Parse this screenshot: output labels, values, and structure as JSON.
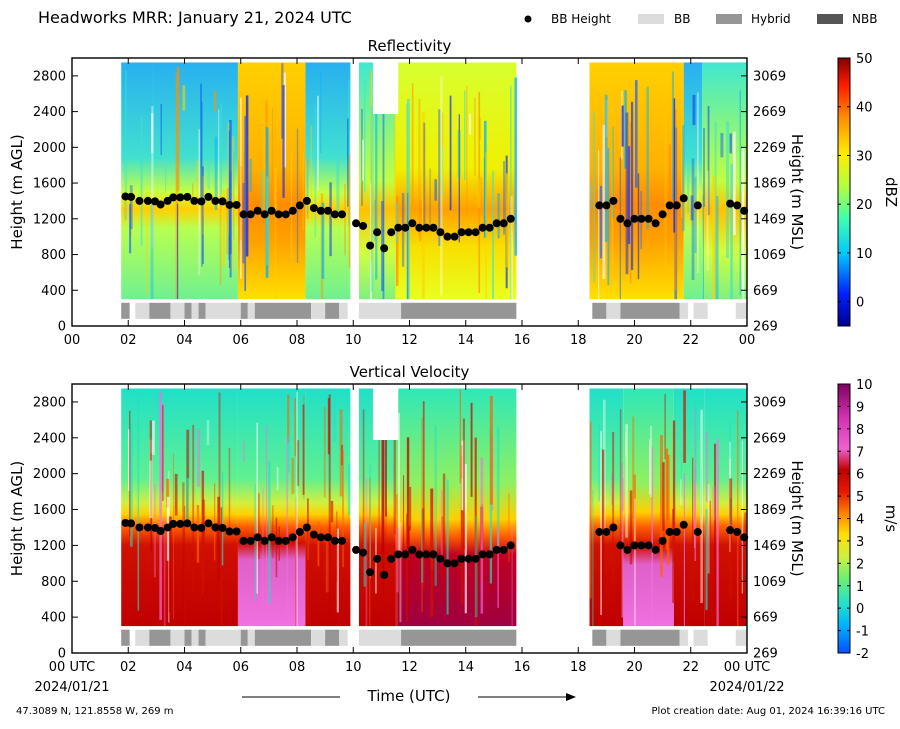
{
  "header": {
    "title": "Headworks MRR:  January 21, 2024 UTC",
    "legend": [
      {
        "label": "BB Height",
        "kind": "dot",
        "color": "#000000"
      },
      {
        "label": "BB",
        "kind": "rect",
        "color": "#dcdcdc"
      },
      {
        "label": "Hybrid",
        "kind": "rect",
        "color": "#969696"
      },
      {
        "label": "NBB",
        "kind": "rect",
        "color": "#555555"
      }
    ]
  },
  "chart_data": [
    {
      "type": "heatmap",
      "title": "Reflectivity",
      "ylabel": "Height (m AGL)",
      "ylabel_right": "Height (m MSL)",
      "yticks": [
        0,
        400,
        800,
        1200,
        1600,
        2000,
        2400,
        2800
      ],
      "yticks_right": [
        269,
        669,
        1069,
        1469,
        1869,
        2269,
        2669,
        3069
      ],
      "ylim": [
        0,
        3000
      ],
      "xlim": [
        0,
        24
      ],
      "xticks": [
        "00",
        "02",
        "04",
        "06",
        "08",
        "10",
        "12",
        "14",
        "16",
        "18",
        "20",
        "22",
        "00"
      ],
      "colorbar": {
        "label": "dBZ",
        "ticks": [
          0,
          10,
          20,
          30,
          40,
          50
        ],
        "range": [
          -5,
          50
        ]
      }
    },
    {
      "type": "heatmap",
      "title": "Vertical Velocity",
      "ylabel": "Height (m AGL)",
      "ylabel_right": "Height (m MSL)",
      "yticks": [
        0,
        400,
        800,
        1200,
        1600,
        2000,
        2400,
        2800
      ],
      "yticks_right": [
        269,
        669,
        1069,
        1469,
        1869,
        2269,
        2669,
        3069
      ],
      "ylim": [
        0,
        3000
      ],
      "xlim": [
        0,
        24
      ],
      "xticks": [
        "00 UTC",
        "02",
        "04",
        "06",
        "08",
        "10",
        "12",
        "14",
        "16",
        "18",
        "20",
        "22",
        "00 UTC"
      ],
      "xticks_sub": {
        "first": "2024/01/21",
        "last": "2024/01/22"
      },
      "xlabel": "Time (UTC)",
      "colorbar": {
        "label": "m/s",
        "ticks": [
          -2,
          -1,
          0,
          1,
          2,
          3,
          4,
          5,
          6,
          7,
          8,
          9,
          10
        ],
        "range": [
          -2,
          10
        ]
      }
    }
  ],
  "bb_height": [
    [
      1.9,
      1450
    ],
    [
      2.1,
      1445
    ],
    [
      2.4,
      1400
    ],
    [
      2.7,
      1400
    ],
    [
      2.95,
      1395
    ],
    [
      3.15,
      1360
    ],
    [
      3.4,
      1400
    ],
    [
      3.6,
      1440
    ],
    [
      3.85,
      1440
    ],
    [
      4.1,
      1445
    ],
    [
      4.35,
      1400
    ],
    [
      4.6,
      1395
    ],
    [
      4.85,
      1445
    ],
    [
      5.1,
      1400
    ],
    [
      5.35,
      1395
    ],
    [
      5.6,
      1355
    ],
    [
      5.85,
      1355
    ],
    [
      6.1,
      1250
    ],
    [
      6.35,
      1250
    ],
    [
      6.6,
      1290
    ],
    [
      6.85,
      1250
    ],
    [
      7.1,
      1290
    ],
    [
      7.35,
      1250
    ],
    [
      7.6,
      1250
    ],
    [
      7.85,
      1290
    ],
    [
      8.1,
      1350
    ],
    [
      8.35,
      1400
    ],
    [
      8.6,
      1320
    ],
    [
      8.85,
      1290
    ],
    [
      9.1,
      1290
    ],
    [
      9.35,
      1250
    ],
    [
      9.6,
      1250
    ],
    [
      10.1,
      1150
    ],
    [
      10.35,
      1120
    ],
    [
      10.6,
      900
    ],
    [
      10.85,
      1050
    ],
    [
      11.1,
      870
    ],
    [
      11.35,
      1050
    ],
    [
      11.6,
      1100
    ],
    [
      11.85,
      1100
    ],
    [
      12.1,
      1150
    ],
    [
      12.35,
      1100
    ],
    [
      12.6,
      1100
    ],
    [
      12.85,
      1100
    ],
    [
      13.1,
      1050
    ],
    [
      13.35,
      1000
    ],
    [
      13.6,
      1000
    ],
    [
      13.85,
      1050
    ],
    [
      14.1,
      1050
    ],
    [
      14.35,
      1050
    ],
    [
      14.6,
      1100
    ],
    [
      14.85,
      1100
    ],
    [
      15.1,
      1150
    ],
    [
      15.35,
      1150
    ],
    [
      15.6,
      1200
    ],
    [
      18.75,
      1350
    ],
    [
      19.0,
      1350
    ],
    [
      19.25,
      1400
    ],
    [
      19.5,
      1200
    ],
    [
      19.75,
      1150
    ],
    [
      20.0,
      1200
    ],
    [
      20.25,
      1200
    ],
    [
      20.5,
      1200
    ],
    [
      20.75,
      1150
    ],
    [
      21.0,
      1250
    ],
    [
      21.25,
      1350
    ],
    [
      21.5,
      1350
    ],
    [
      21.75,
      1430
    ],
    [
      22.25,
      1350
    ],
    [
      23.4,
      1370
    ],
    [
      23.65,
      1350
    ],
    [
      23.9,
      1290
    ]
  ],
  "bb_type": [
    [
      1.75,
      2.05,
      "Hybrid"
    ],
    [
      2.25,
      2.75,
      "BB"
    ],
    [
      2.75,
      3.5,
      "Hybrid"
    ],
    [
      3.5,
      4.0,
      "BB"
    ],
    [
      4.0,
      4.25,
      "Hybrid"
    ],
    [
      4.25,
      4.5,
      "BB"
    ],
    [
      4.5,
      4.75,
      "Hybrid"
    ],
    [
      4.75,
      6.0,
      "BB"
    ],
    [
      6.0,
      6.25,
      "Hybrid"
    ],
    [
      6.25,
      6.5,
      "BB"
    ],
    [
      6.5,
      8.5,
      "Hybrid"
    ],
    [
      8.5,
      9.0,
      "BB"
    ],
    [
      9.0,
      9.5,
      "Hybrid"
    ],
    [
      9.5,
      9.8,
      "BB"
    ],
    [
      10.2,
      11.7,
      "BB"
    ],
    [
      11.7,
      15.8,
      "Hybrid"
    ],
    [
      18.5,
      19.0,
      "Hybrid"
    ],
    [
      19.0,
      19.5,
      "BB"
    ],
    [
      19.5,
      21.6,
      "Hybrid"
    ],
    [
      21.6,
      21.9,
      "BB"
    ],
    [
      22.1,
      22.6,
      "BB"
    ],
    [
      23.6,
      24.0,
      "BB"
    ]
  ],
  "footer": {
    "location": "47.3089 N, 121.8558 W, 269 m",
    "creation": "Plot creation date: Aug 01, 2024 16:39:16 UTC"
  }
}
